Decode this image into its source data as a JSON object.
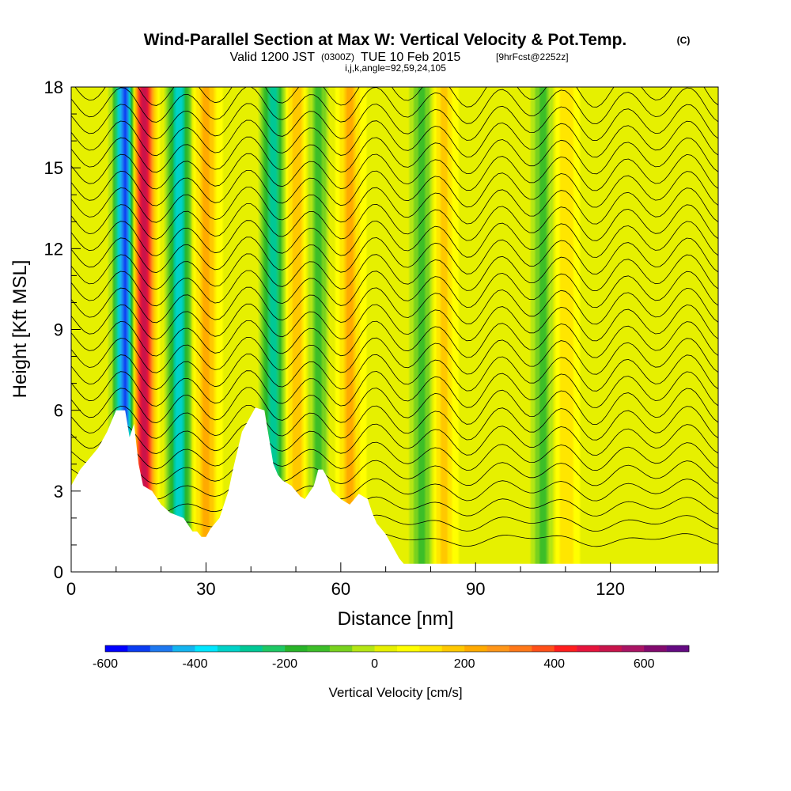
{
  "title": {
    "main": "Wind-Parallel Section at Max W: Vertical Velocity & Pot.Temp.",
    "copyright": "(C)",
    "valid_prefix": "Valid 1200 JST",
    "valid_utc": "(0300Z)",
    "valid_date": "TUE 10 Feb 2015",
    "forecast": "[9hrFcst@2252z]",
    "indices": "i,j,k,angle=92,59,24,105"
  },
  "chart_data": {
    "type": "heatmap",
    "xlabel": "Distance [nm]",
    "ylabel": "Height [Kft MSL]",
    "xlim": [
      0,
      144
    ],
    "ylim": [
      0,
      18
    ],
    "xticks": [
      0,
      30,
      60,
      90,
      120
    ],
    "xtick_labels": [
      "0",
      "30",
      "60",
      "90",
      "120"
    ],
    "yticks": [
      0,
      3,
      6,
      9,
      12,
      15,
      18
    ],
    "ytick_labels": [
      "0",
      "3",
      "6",
      "9",
      "12",
      "15",
      "18"
    ],
    "colorbar": {
      "title": "Vertical Velocity [cm/s]",
      "range": [
        -600,
        700
      ],
      "tick_values": [
        -600,
        -400,
        -200,
        0,
        200,
        400,
        600
      ],
      "tick_labels": [
        "-600",
        "-400",
        "-200",
        "0",
        "200",
        "400",
        "600"
      ],
      "colors": [
        "#0000ff",
        "#0a3cf2",
        "#1e78f0",
        "#14b4f0",
        "#00e6ff",
        "#00d2c8",
        "#00c896",
        "#1ec864",
        "#28b428",
        "#3cbe28",
        "#78d21e",
        "#b4e614",
        "#e6f000",
        "#ffff00",
        "#ffe600",
        "#ffc800",
        "#ffaa00",
        "#ff9619",
        "#ff7819",
        "#ff5019",
        "#ff1e1e",
        "#e6143c",
        "#c8144b",
        "#aa1464",
        "#820a6e",
        "#640a82"
      ]
    },
    "series": [
      {
        "name": "Vertical Velocity",
        "features": [
          {
            "kind": "downdraft",
            "x": 12,
            "value": -560
          },
          {
            "kind": "updraft",
            "x": 16,
            "value": 520
          },
          {
            "kind": "downdraft",
            "x": 24,
            "value": -380
          },
          {
            "kind": "updraft",
            "x": 30,
            "value": 180
          },
          {
            "kind": "downdraft",
            "x": 45,
            "value": -340
          },
          {
            "kind": "updraft",
            "x": 50,
            "value": 150
          },
          {
            "kind": "downdraft",
            "x": 55,
            "value": -150
          },
          {
            "kind": "updraft",
            "x": 62,
            "value": 170
          },
          {
            "kind": "downdraft",
            "x": 78,
            "value": -170
          },
          {
            "kind": "updraft",
            "x": 83,
            "value": 120
          },
          {
            "kind": "downdraft",
            "x": 105,
            "value": -150
          },
          {
            "kind": "updraft",
            "x": 110,
            "value": 110
          }
        ]
      }
    ],
    "terrain_profile": {
      "x": [
        0,
        1,
        2,
        4,
        6,
        8,
        10,
        12,
        13,
        14,
        15,
        16,
        18,
        20,
        22,
        25,
        27,
        28,
        29,
        30,
        31,
        33,
        35,
        36,
        37,
        38,
        40,
        41,
        43,
        44,
        45,
        46,
        47,
        48,
        49,
        50,
        51,
        52,
        54,
        55,
        56,
        57,
        58,
        60,
        62,
        64,
        66,
        67,
        68,
        69,
        70,
        71,
        72,
        73,
        74,
        144
      ],
      "height": [
        3.2,
        3.5,
        3.8,
        4.2,
        4.6,
        5.2,
        6.0,
        6.0,
        5.0,
        5.5,
        4.0,
        3.2,
        3.0,
        2.5,
        2.2,
        2.0,
        1.5,
        1.5,
        1.3,
        1.3,
        1.6,
        2.0,
        3.0,
        3.8,
        4.5,
        5.2,
        5.8,
        6.1,
        6.0,
        5.0,
        4.0,
        3.6,
        3.4,
        3.3,
        3.2,
        3.0,
        2.8,
        2.7,
        3.2,
        3.8,
        3.8,
        3.5,
        3.0,
        2.7,
        2.5,
        2.9,
        2.7,
        2.2,
        1.8,
        1.6,
        1.4,
        1.1,
        0.8,
        0.5,
        0.3,
        0.3
      ]
    }
  }
}
